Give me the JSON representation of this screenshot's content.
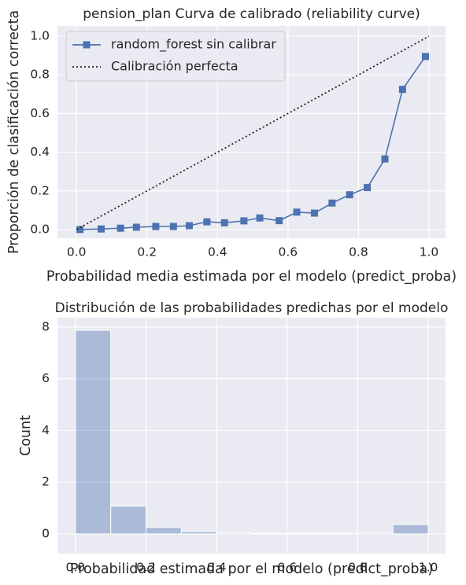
{
  "chart_data": [
    {
      "type": "line",
      "title": "pension_plan Curva de calibrado (reliability curve)",
      "xlabel": "Probabilidad media estimada por el modelo (predict_proba)",
      "ylabel": "Proporción de clasificación correcta",
      "series": [
        {
          "name": "random_forest sin calibrar",
          "color": "#4c72b0",
          "marker": "square",
          "linestyle": "solid",
          "x": [
            0.01,
            0.07,
            0.125,
            0.17,
            0.225,
            0.275,
            0.32,
            0.37,
            0.42,
            0.475,
            0.52,
            0.575,
            0.625,
            0.675,
            0.725,
            0.775,
            0.825,
            0.875,
            0.925,
            0.99
          ],
          "values": [
            0.0,
            0.003,
            0.007,
            0.012,
            0.016,
            0.016,
            0.02,
            0.04,
            0.035,
            0.045,
            0.06,
            0.046,
            0.09,
            0.085,
            0.137,
            0.18,
            0.217,
            0.365,
            0.725,
            0.895
          ]
        },
        {
          "name": "Calibración perfecta",
          "color": "#222222",
          "marker": null,
          "linestyle": "dotted",
          "x": [
            0,
            1
          ],
          "values": [
            0,
            1
          ]
        }
      ],
      "xlim": [
        -0.054,
        1.047
      ],
      "ylim": [
        -0.045,
        1.053
      ],
      "xticks": [
        {
          "value": 0,
          "label": "0.0"
        },
        0.2,
        0.4,
        0.6,
        0.8,
        {
          "value": 1,
          "label": "1.0"
        }
      ],
      "yticks": [
        {
          "value": 0,
          "label": "0.0"
        },
        0.2,
        0.4,
        0.6,
        0.8,
        {
          "value": 1,
          "label": "1.0"
        }
      ],
      "grid": true,
      "legend": "upper left"
    },
    {
      "type": "histogram",
      "title": "Distribución de las probabilidades predichas por el modelo",
      "xlabel": "Probabilidad estimada por el modelo (predict_proba)",
      "ylabel": "Count",
      "bins": [
        0,
        0.1,
        0.2,
        0.3,
        0.4,
        0.5,
        0.6,
        0.7,
        0.8,
        0.9,
        1.0
      ],
      "counts": [
        7.87,
        1.07,
        0.25,
        0.09,
        0.04,
        0.02,
        0.02,
        0.02,
        0.04,
        0.36
      ],
      "color": "#4c72b0",
      "alpha": 0.4,
      "xlim": [
        -0.051,
        1.049
      ],
      "ylim": [
        -0.76,
        8.36
      ],
      "xticks": [
        {
          "value": 0,
          "label": "0.0"
        },
        0.2,
        0.4,
        0.6,
        0.8,
        {
          "value": 1,
          "label": "1.0"
        }
      ],
      "yticks": [
        0,
        2,
        4,
        6,
        8
      ],
      "grid": true
    }
  ]
}
